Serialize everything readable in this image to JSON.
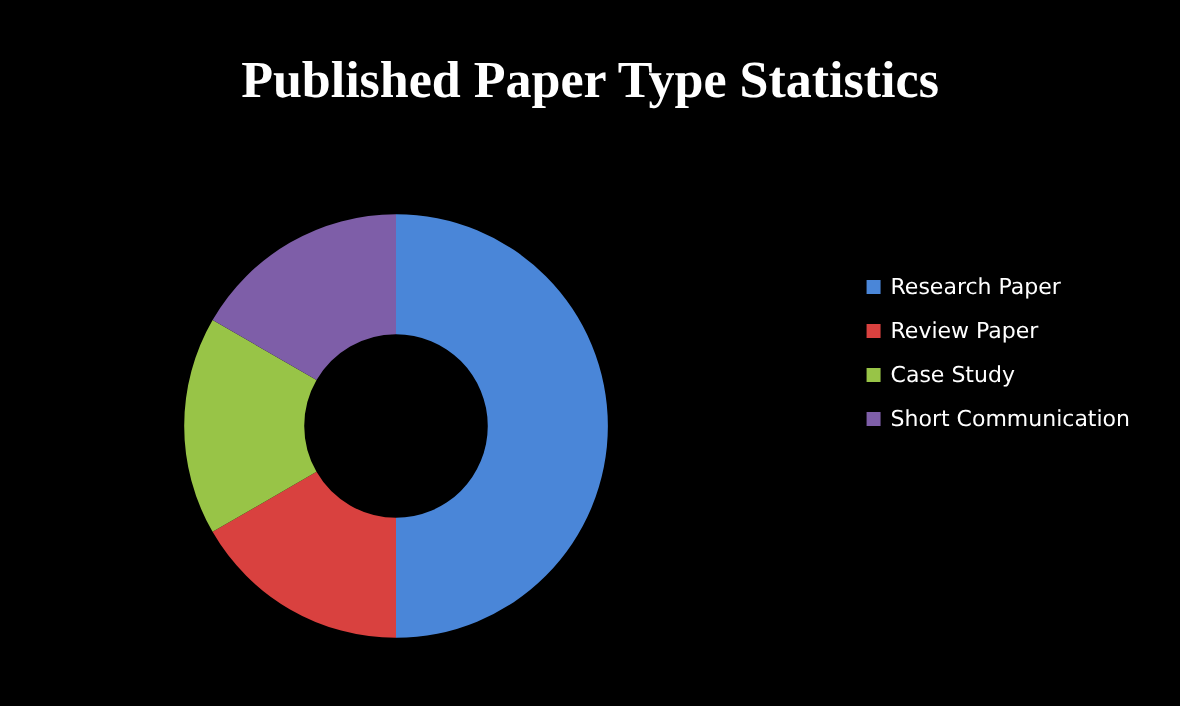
{
  "chart_data": {
    "type": "donut",
    "title": "Published Paper Type Statistics",
    "categories": [
      "Research Paper",
      "Review Paper",
      "Case Study",
      "Short Communication"
    ],
    "values": [
      50,
      16.67,
      16.67,
      16.66
    ],
    "colors": [
      "#4a86d8",
      "#d9413f",
      "#98c447",
      "#7e5ea8"
    ],
    "legend": "right"
  }
}
